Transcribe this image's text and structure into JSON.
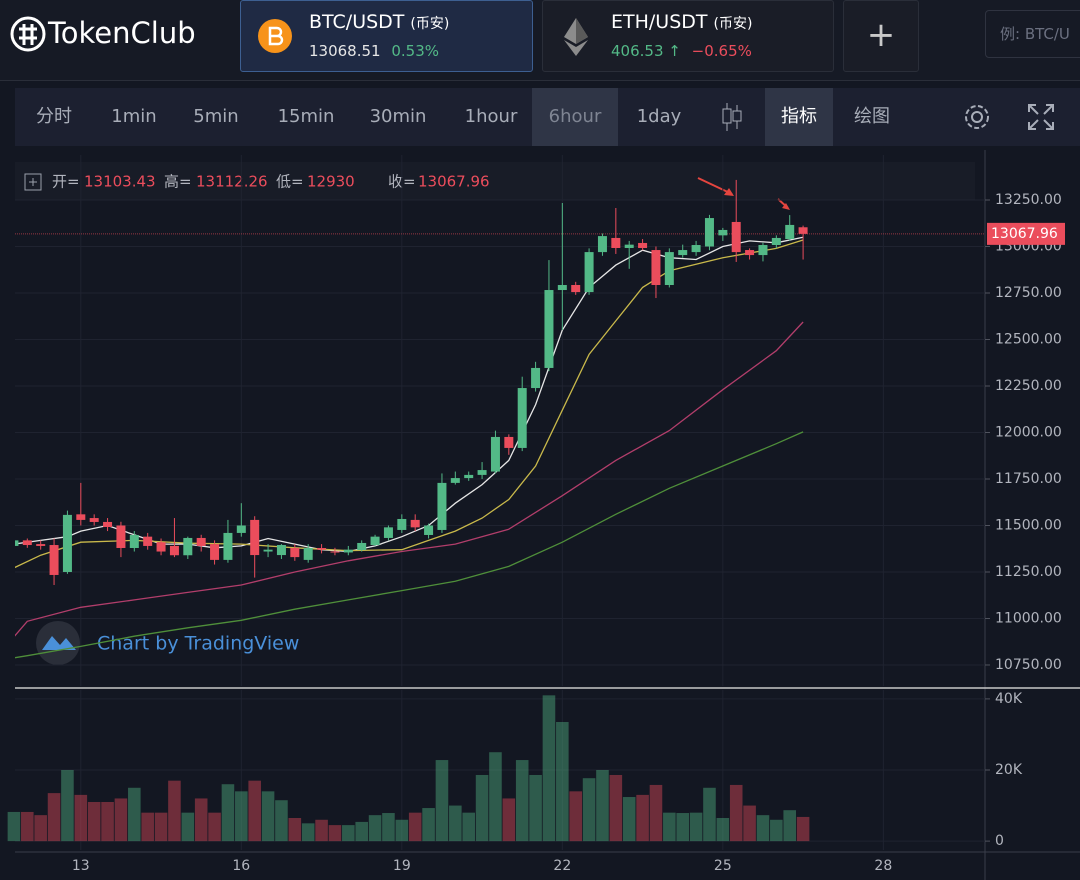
{
  "header": {
    "logo": "TokenClub",
    "tabs": [
      {
        "pair": "BTC/USDT",
        "exchange": "(币安)",
        "price": "13068.51",
        "change": "0.53%"
      },
      {
        "pair": "ETH/USDT",
        "exchange": "(币安)",
        "price": "406.53",
        "arrow": "↑",
        "change": "−0.65%"
      }
    ],
    "add": "+",
    "search_placeholder": "例: BTC/U"
  },
  "toolbar": {
    "intervals": [
      "分时",
      "1min",
      "5min",
      "15min",
      "30min",
      "1hour",
      "6hour",
      "1day"
    ],
    "selected": 6,
    "indicators": "指标",
    "drawing": "绘图"
  },
  "chart_data": [
    {
      "type": "candlestick",
      "ohlc_labels": {
        "open": "开=",
        "high": "高=",
        "low": "低=",
        "close": "收="
      },
      "watermark": "Chart by TradingView",
      "up_color": "#53b987",
      "down_color": "#eb4d5c",
      "grid": true,
      "xlim": [
        11.77,
        29.9
      ],
      "ylim": [
        10637,
        13492
      ],
      "yticks": [
        {
          "value": 13250,
          "label": "13250.00"
        },
        {
          "value": 13000,
          "label": "13000.00"
        },
        {
          "value": 12750,
          "label": "12750.00"
        },
        {
          "value": 12500,
          "label": "12500.00"
        },
        {
          "value": 12250,
          "label": "12250.00"
        },
        {
          "value": 12000,
          "label": "12000.00"
        },
        {
          "value": 11750,
          "label": "11750.00"
        },
        {
          "value": 11500,
          "label": "11500.00"
        },
        {
          "value": 11250,
          "label": "11250.00"
        },
        {
          "value": 11000,
          "label": "11000.00"
        },
        {
          "value": 10750,
          "label": "10750.00"
        }
      ],
      "x": [
        11.75,
        12,
        12.25,
        12.5,
        12.75,
        13,
        13.25,
        13.5,
        13.75,
        14,
        14.25,
        14.5,
        14.75,
        15,
        15.25,
        15.5,
        15.75,
        16,
        16.25,
        16.5,
        16.75,
        17,
        17.25,
        17.5,
        17.75,
        18,
        18.25,
        18.5,
        18.75,
        19,
        19.25,
        19.5,
        19.75,
        20,
        20.25,
        20.5,
        20.75,
        21,
        21.25,
        21.5,
        21.75,
        22,
        22.25,
        22.5,
        22.75,
        23,
        23.25,
        23.5,
        23.75,
        24,
        24.25,
        24.5,
        24.75,
        25,
        25.25,
        25.5,
        25.75,
        26,
        26.25,
        26.5
      ],
      "open": [
        11390,
        11420,
        11400,
        11395,
        11250,
        11560,
        11540,
        11519,
        11500,
        11379,
        11440,
        11410,
        11390,
        11340,
        11433,
        11400,
        11315,
        11460,
        11530,
        11360,
        11341,
        11379,
        11315,
        11379,
        11360,
        11355,
        11368,
        11395,
        11433,
        11476,
        11530,
        11449,
        11476,
        11729,
        11755,
        11772,
        11790,
        11976,
        11917,
        12239,
        12347,
        12766,
        12793,
        12755,
        12970,
        13046,
        12992,
        13019,
        12981,
        12793,
        12954,
        12970,
        13000,
        13060,
        13132,
        12981,
        12954,
        13008,
        13040,
        13103.43
      ],
      "high": [
        11440,
        11430,
        11420,
        11430,
        11580,
        11729,
        11560,
        11540,
        11520,
        11470,
        11460,
        11430,
        11540,
        11440,
        11450,
        11420,
        11530,
        11620,
        11550,
        11400,
        11400,
        11400,
        11400,
        11400,
        11380,
        11390,
        11420,
        11450,
        11500,
        11560,
        11560,
        11510,
        11780,
        11790,
        11790,
        11841,
        12010,
        11990,
        12300,
        12380,
        12927,
        13234,
        12810,
        12990,
        13070,
        13207,
        13030,
        13040,
        13000,
        12990,
        13010,
        13030,
        13170,
        13100,
        13358,
        12990,
        13020,
        13060,
        13169,
        13112.26
      ],
      "low": [
        11370,
        11380,
        11370,
        11180,
        11240,
        11500,
        11500,
        11470,
        11330,
        11360,
        11370,
        11340,
        11330,
        11320,
        11360,
        11290,
        11300,
        11440,
        11220,
        11330,
        11320,
        11310,
        11300,
        11350,
        11340,
        11340,
        11360,
        11390,
        11420,
        11460,
        11470,
        11430,
        11460,
        11720,
        11740,
        11750,
        11780,
        11880,
        11900,
        12220,
        12330,
        12551,
        12740,
        12740,
        12950,
        12960,
        12880,
        12980,
        12723,
        12780,
        12940,
        12950,
        12980,
        13030,
        12917,
        12930,
        12920,
        12990,
        13030,
        12930
      ],
      "close": [
        11420,
        11395,
        11390,
        11234,
        11557,
        11530,
        11519,
        11492,
        11379,
        11449,
        11390,
        11360,
        11340,
        11433,
        11390,
        11315,
        11460,
        11500,
        11341,
        11370,
        11395,
        11330,
        11379,
        11370,
        11355,
        11370,
        11406,
        11440,
        11490,
        11535,
        11490,
        11500,
        11729,
        11755,
        11772,
        11798,
        11976,
        11917,
        12239,
        12347,
        12766,
        12793,
        12755,
        12970,
        13056,
        12992,
        13010,
        12992,
        12793,
        12970,
        12981,
        13008,
        13153,
        13089,
        12970,
        12954,
        13008,
        13046,
        13116,
        13067.96
      ],
      "lines": [
        {
          "color": "#e6e6e6",
          "x": [
            11.75,
            12.25,
            12.75,
            13,
            13.5,
            14,
            14.5,
            15,
            15.5,
            16,
            16.5,
            17,
            17.5,
            18,
            18.5,
            19,
            19.5,
            20,
            20.5,
            21,
            21.5,
            22,
            22.5,
            23,
            23.5,
            24,
            24.5,
            25,
            25.5,
            26,
            26.5
          ],
          "values": [
            11400,
            11420,
            11440,
            11470,
            11500,
            11450,
            11400,
            11400,
            11380,
            11390,
            11430,
            11400,
            11370,
            11360,
            11390,
            11440,
            11500,
            11620,
            11720,
            11850,
            12150,
            12550,
            12780,
            12900,
            12980,
            12940,
            12930,
            13000,
            13030,
            13020,
            13050
          ]
        },
        {
          "color": "#c9b94b",
          "x": [
            11.75,
            12.25,
            13,
            14,
            15,
            16,
            17,
            18,
            19,
            19.5,
            20,
            20.5,
            21,
            21.5,
            22,
            22.5,
            23,
            23.5,
            24,
            25,
            26,
            26.5
          ],
          "values": [
            11272,
            11340,
            11410,
            11420,
            11405,
            11400,
            11380,
            11365,
            11370,
            11420,
            11470,
            11540,
            11640,
            11820,
            12120,
            12420,
            12600,
            12780,
            12870,
            12940,
            12990,
            13035
          ]
        },
        {
          "color": "#b23e6b",
          "x": [
            11.75,
            12,
            13,
            14,
            15,
            16,
            17,
            18,
            19,
            20,
            21,
            22,
            23,
            24,
            25,
            26,
            26.5
          ],
          "values": [
            10901,
            10985,
            11060,
            11100,
            11140,
            11180,
            11250,
            11310,
            11360,
            11400,
            11480,
            11660,
            11850,
            12010,
            12230,
            12440,
            12594
          ]
        },
        {
          "color": "#4f8f3a",
          "x": [
            11.75,
            12,
            13,
            14,
            15,
            16,
            17,
            18,
            19,
            20,
            21,
            22,
            23,
            24,
            25,
            26,
            26.5
          ],
          "values": [
            10788,
            10800,
            10850,
            10905,
            10950,
            10990,
            11050,
            11100,
            11150,
            11200,
            11280,
            11410,
            11560,
            11700,
            11820,
            11940,
            12003
          ]
        }
      ]
    },
    {
      "type": "bar",
      "up_color": "rgba(83,185,135,0.42)",
      "down_color": "rgba(235,77,92,0.42)",
      "grid": true,
      "xlim": [
        11.77,
        29.9
      ],
      "ylim": [
        -2500,
        42500
      ],
      "yticks": [
        {
          "value": 40000,
          "label": "40K"
        },
        {
          "value": 20000,
          "label": "20K"
        },
        0
      ],
      "xticks": [
        13,
        16,
        19,
        22,
        25,
        28
      ],
      "x": [
        11.75,
        12,
        12.25,
        12.5,
        12.75,
        13,
        13.25,
        13.5,
        13.75,
        14,
        14.25,
        14.5,
        14.75,
        15,
        15.25,
        15.5,
        15.75,
        16,
        16.25,
        16.5,
        16.75,
        17,
        17.25,
        17.5,
        17.75,
        18,
        18.25,
        18.5,
        18.75,
        19,
        19.25,
        19.5,
        19.75,
        20,
        20.25,
        20.5,
        20.75,
        21,
        21.25,
        21.5,
        21.75,
        22,
        22.25,
        22.5,
        22.75,
        23,
        23.25,
        23.5,
        23.75,
        24,
        24.25,
        24.5,
        24.75,
        25,
        25.25,
        25.5,
        25.75,
        26,
        26.25,
        26.5
      ],
      "values": [
        8200,
        8200,
        7300,
        13500,
        20000,
        13000,
        11000,
        11000,
        12000,
        15000,
        8000,
        8000,
        17000,
        8000,
        12000,
        8000,
        16000,
        14000,
        17000,
        14000,
        11500,
        6500,
        5000,
        6000,
        4500,
        4500,
        5400,
        7300,
        7900,
        6000,
        8000,
        9300,
        22800,
        10000,
        8000,
        18600,
        25000,
        12000,
        22800,
        18600,
        41000,
        33500,
        14000,
        17700,
        20000,
        18600,
        12400,
        13000,
        15800,
        8000,
        7900,
        8000,
        15000,
        6500,
        15800,
        10000,
        7300,
        6000,
        8700,
        6800
      ]
    }
  ]
}
